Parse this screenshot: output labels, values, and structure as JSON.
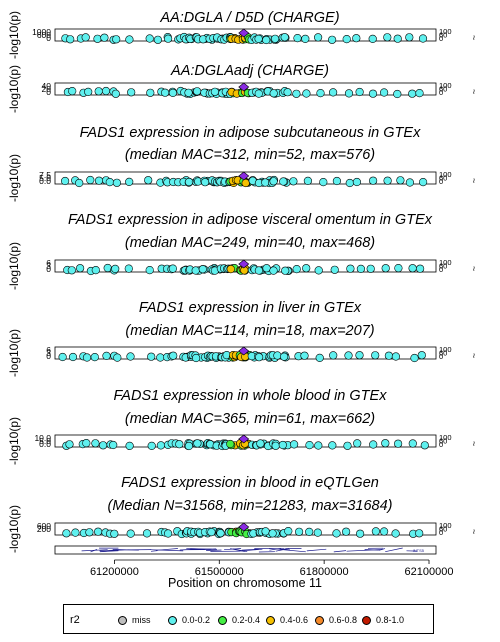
{
  "chart_data": {
    "type": "scatter",
    "x_axis": {
      "label": "Position on chromosome 11",
      "range": [
        61030000,
        62120000
      ],
      "ticks": [
        61200000,
        61500000,
        61800000,
        62100000
      ],
      "tick_labels": [
        "61200000",
        "61500000",
        "61800000",
        "62100000"
      ]
    },
    "y_label": "-log10(p)",
    "panels": [
      {
        "title": [
          "AA:DGLA / D5D (CHARGE)"
        ],
        "y_ticks": [
          "1000",
          "600",
          "0"
        ],
        "lead_max": 1000
      },
      {
        "title": [
          "AA:DGLAadj (CHARGE)"
        ],
        "y_ticks": [
          "40",
          "20",
          "0"
        ],
        "lead_max": 40
      },
      {
        "title": [
          "FADS1 expression in adipose subcutaneous in GTEx",
          "(median MAC=312, min=52, max=576)"
        ],
        "y_ticks": [
          "7.5",
          "5.0",
          "0.0"
        ],
        "lead_max": 7.5
      },
      {
        "title": [
          "FADS1 expression in adipose visceral omentum in GTEx",
          "(median MAC=249, min=40, max=468)"
        ],
        "y_ticks": [
          "6",
          "3",
          "0"
        ],
        "lead_max": 6
      },
      {
        "title": [
          "FADS1 expression in liver in GTEx",
          "(median MAC=114, min=18, max=207)"
        ],
        "y_ticks": [
          "6",
          "3",
          "0"
        ],
        "lead_max": 6
      },
      {
        "title": [
          "FADS1 expression in whole blood in GTEx",
          "(median MAC=365, min=61, max=662)"
        ],
        "y_ticks": [
          "10.0",
          "5.0",
          "0.0"
        ],
        "lead_max": 10
      },
      {
        "title": [
          "FADS1 expression in blood in eQTLGen",
          "(Median N=31568, min=21283, max=31684)"
        ],
        "y_ticks": [
          "600",
          "200"
        ],
        "lead_max": 600
      }
    ],
    "right_axis_ticks": [
      "100",
      "60",
      "0"
    ],
    "legend": {
      "title": "r2",
      "items": [
        {
          "label": "miss",
          "color": "#bebebe"
        },
        {
          "label": "0.0-0.2",
          "color": "#5ff0ee"
        },
        {
          "label": "0.2-0.4",
          "color": "#44ee44"
        },
        {
          "label": "0.4-0.6",
          "color": "#f5c000"
        },
        {
          "label": "0.6-0.8",
          "color": "#f58a2a"
        },
        {
          "label": "0.8-1.0",
          "color": "#c01a00"
        }
      ]
    },
    "lead_color": "#8a2be2",
    "snp_positions": [
      61060000,
      61080000,
      61105000,
      61125000,
      61150000,
      61175000,
      61195000,
      61205000,
      61240000,
      61300000,
      61330000,
      61345000,
      61360000,
      61375000,
      61390000,
      61405000,
      61420000,
      61440000,
      61460000,
      61480000,
      61495000,
      61510000,
      61525000,
      61540000,
      61555000,
      61568000,
      61580000,
      61600000,
      61620000,
      61640000,
      61660000,
      61690000,
      61720000,
      61750000,
      61790000,
      61830000,
      61870000,
      61900000,
      61940000,
      61980000,
      62010000,
      62050000,
      62080000
    ],
    "gene_label": "INTS5"
  }
}
